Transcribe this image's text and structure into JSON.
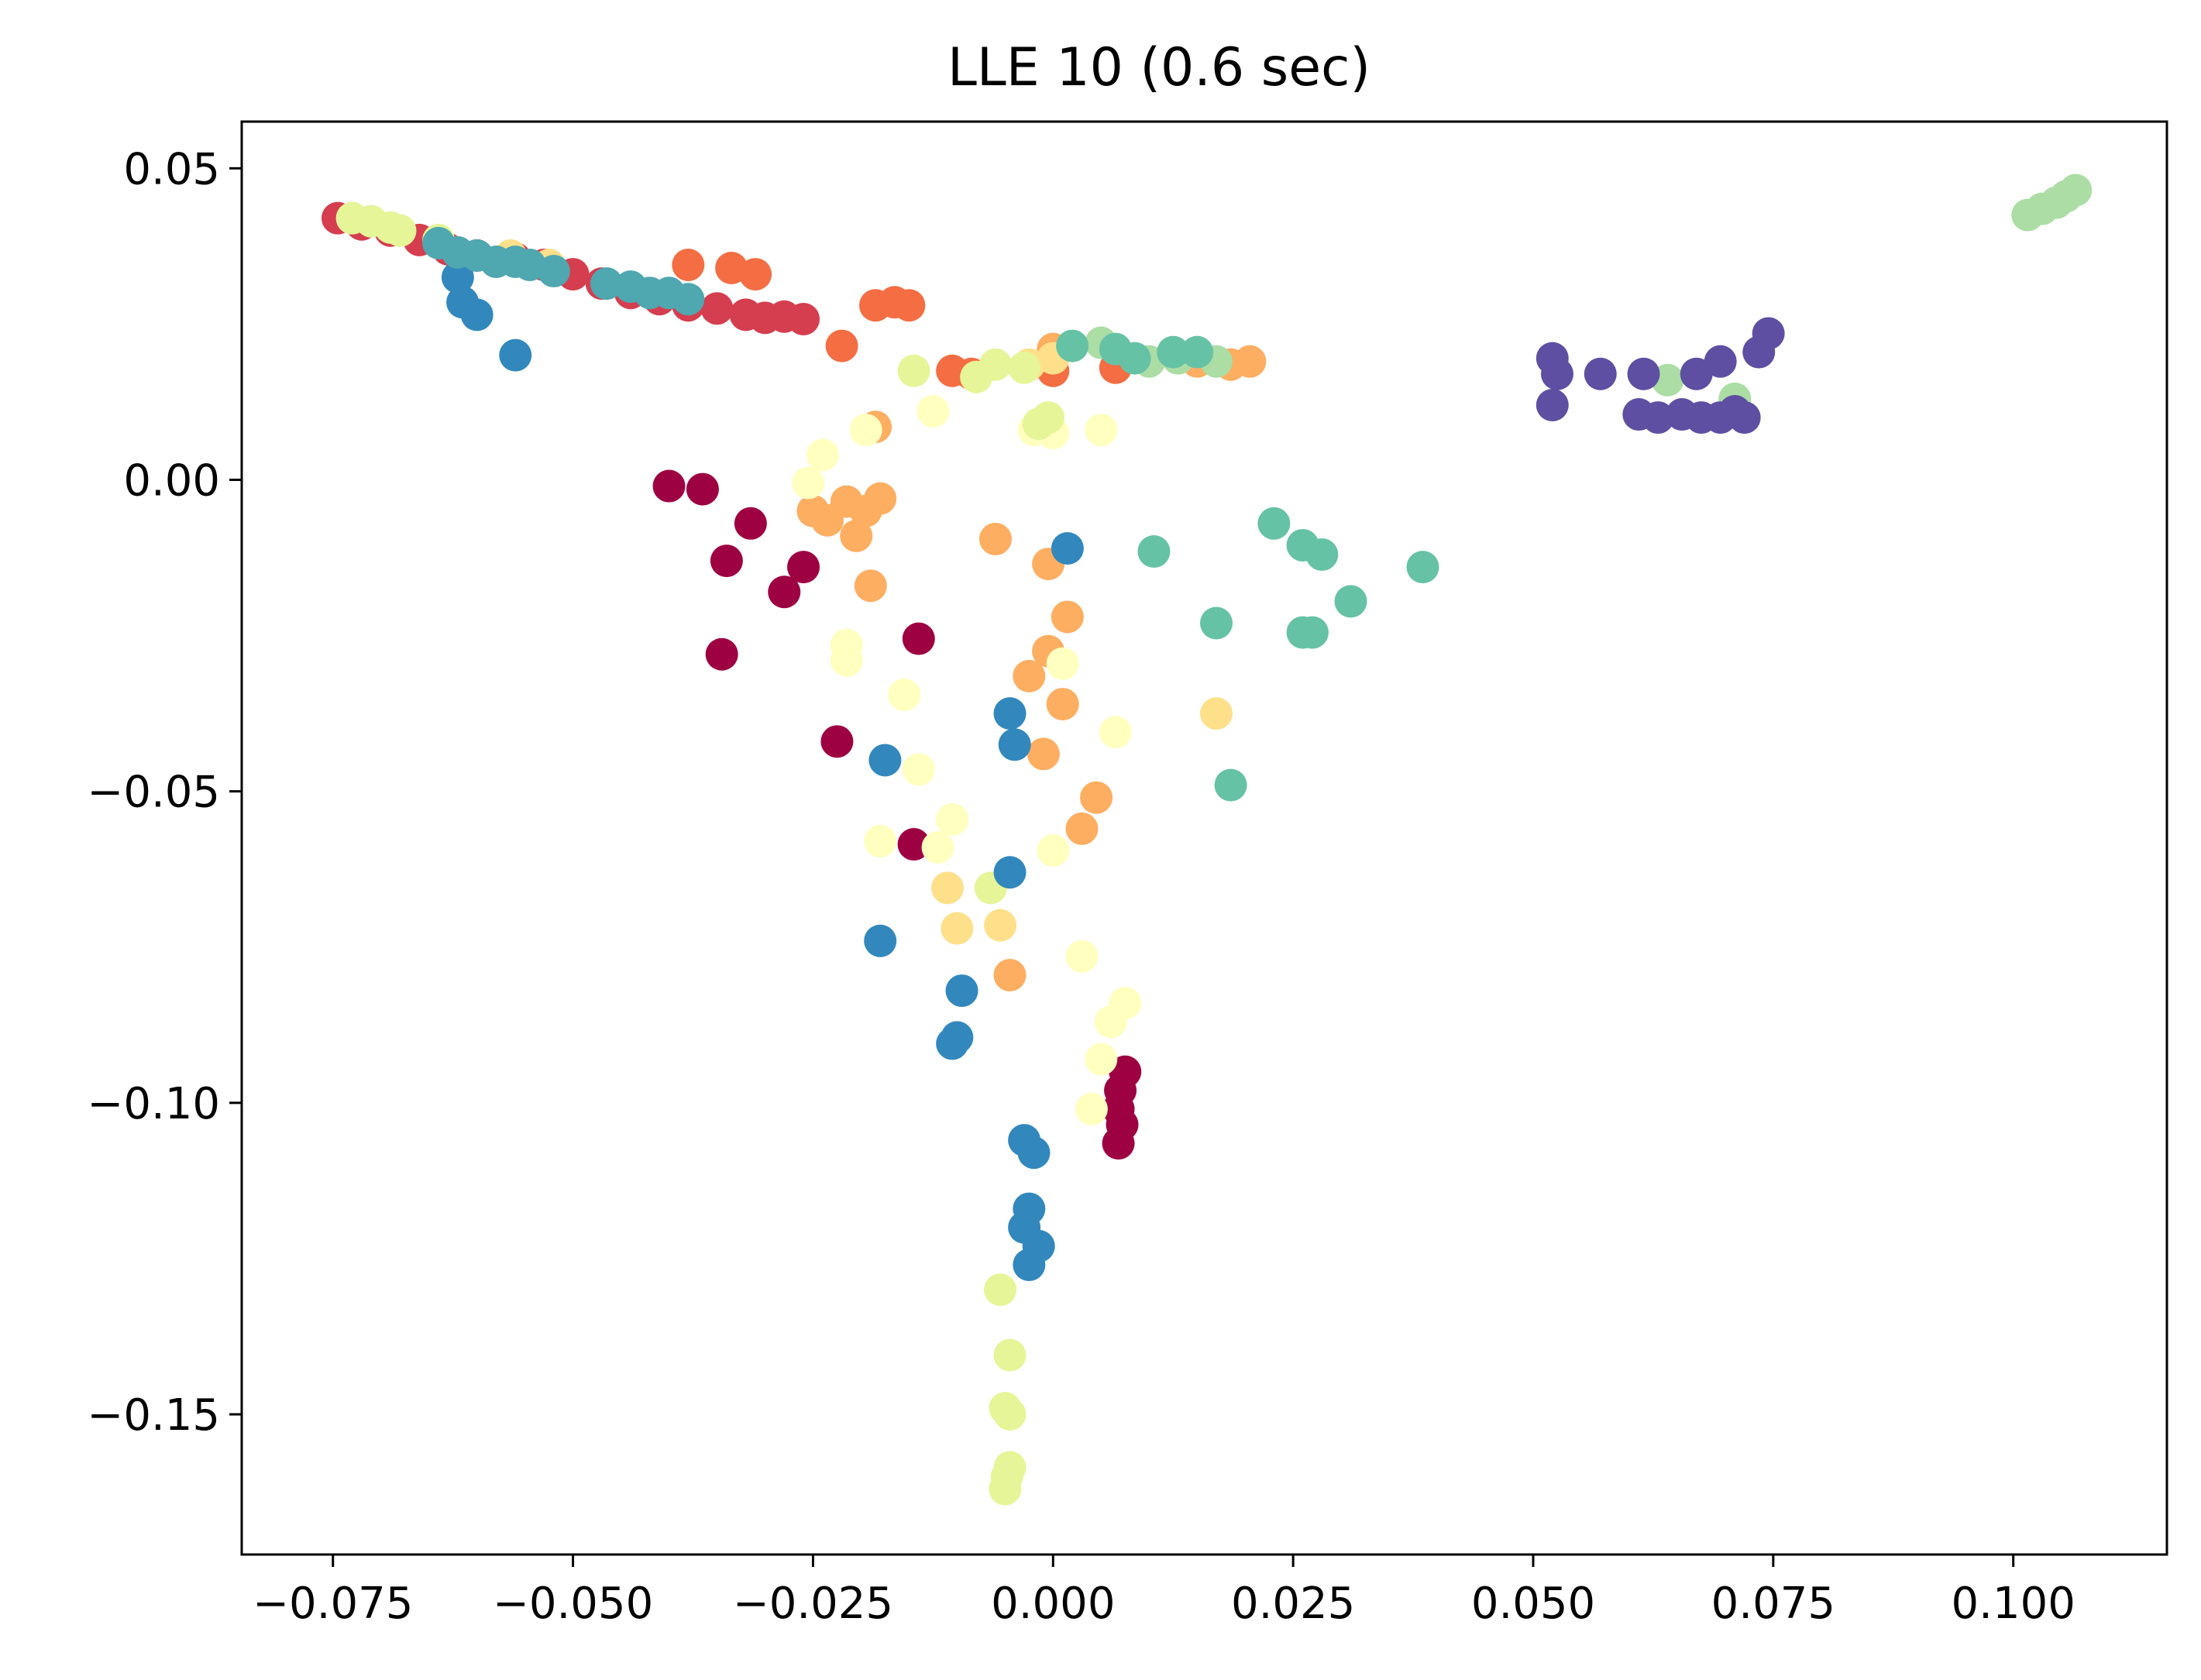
{
  "chart_data": {
    "type": "scatter",
    "title": "LLE 10 (0.6 sec)",
    "xlabel": "",
    "ylabel": "",
    "xlim": [
      -0.0845,
      0.116
    ],
    "ylim": [
      -0.1725,
      0.0575
    ],
    "xticks": [
      -0.075,
      -0.05,
      -0.025,
      0.0,
      0.025,
      0.05,
      0.075,
      0.1
    ],
    "xtick_labels": [
      "−0.075",
      "−0.050",
      "−0.025",
      "0.000",
      "0.025",
      "0.050",
      "0.075",
      "0.100"
    ],
    "yticks": [
      0.05,
      0.0,
      -0.05,
      -0.1,
      -0.15
    ],
    "ytick_labels": [
      "0.05",
      "0.00",
      "−0.05",
      "−0.10",
      "−0.15"
    ],
    "grid": false,
    "legend": "none",
    "marker_colors": {
      "c1": "#9e0142",
      "c2": "#d53e4f",
      "c3": "#f46d43",
      "c4": "#fdae61",
      "c5": "#fee08b",
      "c6": "#ffffbf",
      "c7": "#e6f598",
      "c8": "#abdda4",
      "c9": "#66c2a5",
      "c10": "#3288bd",
      "c11": "#5e4fa2",
      "c12": "#4fa7b0"
    },
    "series": [
      {
        "color": "c1",
        "points": [
          [
            -0.04,
            -0.001
          ],
          [
            -0.0365,
            -0.0015
          ],
          [
            -0.0315,
            -0.007
          ],
          [
            -0.034,
            -0.013
          ],
          [
            -0.026,
            -0.014
          ],
          [
            -0.028,
            -0.018
          ],
          [
            -0.0345,
            -0.028
          ],
          [
            -0.014,
            -0.0255
          ],
          [
            -0.0225,
            -0.042
          ],
          [
            -0.0145,
            -0.0585
          ],
          [
            0.0075,
            -0.095
          ],
          [
            0.007,
            -0.098
          ],
          [
            0.0068,
            -0.101
          ],
          [
            0.0072,
            -0.1035
          ],
          [
            0.0068,
            -0.1065
          ]
        ]
      },
      {
        "color": "c2",
        "points": [
          [
            -0.0745,
            0.042
          ],
          [
            -0.072,
            0.041
          ],
          [
            -0.069,
            0.04
          ],
          [
            -0.066,
            0.0385
          ],
          [
            -0.063,
            0.037
          ],
          [
            -0.06,
            0.036
          ],
          [
            -0.056,
            0.0355
          ],
          [
            -0.053,
            0.0345
          ],
          [
            -0.05,
            0.033
          ],
          [
            -0.047,
            0.0315
          ],
          [
            -0.044,
            0.03
          ],
          [
            -0.041,
            0.029
          ],
          [
            -0.038,
            0.028
          ],
          [
            -0.035,
            0.0275
          ],
          [
            -0.032,
            0.0265
          ],
          [
            -0.03,
            0.026
          ],
          [
            -0.028,
            0.0262
          ],
          [
            -0.026,
            0.0258
          ]
        ]
      },
      {
        "color": "c3",
        "points": [
          [
            -0.038,
            0.0345
          ],
          [
            -0.0335,
            0.034
          ],
          [
            -0.031,
            0.033
          ],
          [
            -0.022,
            0.0215
          ],
          [
            -0.0185,
            0.028
          ],
          [
            -0.0165,
            0.0285
          ],
          [
            -0.015,
            0.028
          ],
          [
            -0.0105,
            0.0175
          ],
          [
            -0.0085,
            0.017
          ],
          [
            0.0,
            0.0175
          ],
          [
            0.0065,
            0.018
          ]
        ]
      },
      {
        "color": "c4",
        "points": [
          [
            -0.0185,
            0.0085
          ],
          [
            -0.0215,
            -0.0035
          ],
          [
            -0.0195,
            -0.005
          ],
          [
            -0.0235,
            -0.0065
          ],
          [
            -0.0205,
            -0.009
          ],
          [
            -0.018,
            -0.003
          ],
          [
            -0.025,
            -0.005
          ],
          [
            -0.019,
            -0.017
          ],
          [
            0.0,
            0.021
          ],
          [
            0.015,
            0.019
          ],
          [
            0.0185,
            0.0185
          ],
          [
            0.0205,
            0.019
          ]
        ]
      },
      {
        "color": "c4",
        "points": [
          [
            -0.006,
            -0.0095
          ],
          [
            -0.0005,
            -0.0135
          ],
          [
            0.0015,
            -0.022
          ],
          [
            -0.0005,
            -0.0275
          ],
          [
            -0.0025,
            -0.0315
          ],
          [
            0.001,
            -0.036
          ],
          [
            -0.001,
            -0.044
          ],
          [
            0.0045,
            -0.051
          ],
          [
            0.003,
            -0.056
          ],
          [
            -0.0045,
            -0.0795
          ]
        ]
      },
      {
        "color": "c5",
        "points": [
          [
            -0.0565,
            0.036
          ],
          [
            -0.0525,
            0.0345
          ],
          [
            -0.0025,
            0.0185
          ],
          [
            0.0,
            0.0195
          ],
          [
            -0.0055,
            -0.0715
          ],
          [
            -0.01,
            -0.072
          ],
          [
            -0.011,
            -0.0655
          ],
          [
            0.017,
            -0.0375
          ]
        ]
      },
      {
        "color": "c6",
        "points": [
          [
            -0.0255,
            -0.0005
          ],
          [
            -0.024,
            0.004
          ],
          [
            -0.0195,
            0.008
          ],
          [
            -0.0125,
            0.011
          ],
          [
            -0.0215,
            -0.0265
          ],
          [
            -0.0215,
            -0.029
          ],
          [
            -0.0155,
            -0.0345
          ],
          [
            -0.014,
            -0.0465
          ],
          [
            -0.0105,
            -0.0545
          ],
          [
            -0.018,
            -0.058
          ],
          [
            -0.012,
            -0.059
          ],
          [
            0.001,
            -0.0295
          ],
          [
            0.0065,
            -0.0405
          ],
          [
            0.0,
            -0.0595
          ],
          [
            0.003,
            -0.0765
          ],
          [
            0.0075,
            -0.084
          ],
          [
            0.006,
            -0.087
          ],
          [
            0.005,
            -0.093
          ],
          [
            0.004,
            -0.101
          ],
          [
            -0.002,
            0.008
          ],
          [
            0.0,
            0.0075
          ],
          [
            0.005,
            0.008
          ]
        ]
      },
      {
        "color": "c7",
        "points": [
          [
            -0.073,
            0.042
          ],
          [
            -0.071,
            0.0415
          ],
          [
            -0.069,
            0.0405
          ],
          [
            -0.068,
            0.04
          ],
          [
            -0.064,
            0.0385
          ],
          [
            -0.0145,
            0.0175
          ],
          [
            -0.008,
            0.0165
          ],
          [
            -0.006,
            0.0185
          ],
          [
            -0.003,
            0.018
          ],
          [
            -0.0015,
            0.009
          ],
          [
            -0.0005,
            0.01
          ],
          [
            -0.0065,
            -0.0655
          ],
          [
            -0.0055,
            -0.13
          ],
          [
            -0.0045,
            -0.1405
          ],
          [
            -0.005,
            -0.149
          ],
          [
            -0.0045,
            -0.15
          ],
          [
            -0.0045,
            -0.1585
          ],
          [
            -0.0048,
            -0.16
          ],
          [
            -0.005,
            -0.162
          ]
        ]
      },
      {
        "color": "c8",
        "points": [
          [
            0.1015,
            0.0425
          ],
          [
            0.103,
            0.0435
          ],
          [
            0.1045,
            0.0445
          ],
          [
            0.1055,
            0.0455
          ],
          [
            0.1065,
            0.0465
          ],
          [
            0.005,
            0.022
          ],
          [
            0.01,
            0.019
          ],
          [
            0.013,
            0.0195
          ],
          [
            0.017,
            0.019
          ],
          [
            0.064,
            0.016
          ],
          [
            0.071,
            0.013
          ]
        ]
      },
      {
        "color": "c9",
        "points": [
          [
            0.002,
            0.0215
          ],
          [
            0.0065,
            0.021
          ],
          [
            0.0085,
            0.0195
          ],
          [
            0.0125,
            0.0205
          ],
          [
            0.015,
            0.0205
          ],
          [
            0.0105,
            -0.0115
          ],
          [
            0.023,
            -0.007
          ],
          [
            0.026,
            -0.0105
          ],
          [
            0.028,
            -0.012
          ],
          [
            0.0385,
            -0.014
          ],
          [
            0.031,
            -0.0195
          ],
          [
            0.017,
            -0.023
          ],
          [
            0.026,
            -0.0245
          ],
          [
            0.027,
            -0.0245
          ],
          [
            0.0185,
            -0.049
          ]
        ]
      },
      {
        "color": "c10",
        "points": [
          [
            0.0015,
            -0.011
          ],
          [
            -0.0045,
            -0.0375
          ],
          [
            -0.004,
            -0.0425
          ],
          [
            -0.0045,
            -0.063
          ],
          [
            -0.003,
            -0.106
          ],
          [
            -0.002,
            -0.108
          ],
          [
            -0.0025,
            -0.117
          ],
          [
            -0.003,
            -0.12
          ],
          [
            -0.0015,
            -0.123
          ],
          [
            -0.0025,
            -0.126
          ]
        ]
      },
      {
        "color": "c10",
        "points": [
          [
            -0.062,
            0.0325
          ],
          [
            -0.0615,
            0.0285
          ],
          [
            -0.06,
            0.0265
          ],
          [
            -0.056,
            0.02
          ],
          [
            -0.0175,
            -0.045
          ],
          [
            -0.018,
            -0.074
          ],
          [
            -0.0095,
            -0.082
          ],
          [
            -0.01,
            -0.0895
          ],
          [
            -0.0105,
            -0.0905
          ]
        ]
      },
      {
        "color": "c11",
        "points": [
          [
            0.052,
            0.0195
          ],
          [
            0.0525,
            0.017
          ],
          [
            0.057,
            0.017
          ],
          [
            0.0615,
            0.017
          ],
          [
            0.067,
            0.017
          ],
          [
            0.0695,
            0.019
          ],
          [
            0.0735,
            0.0205
          ],
          [
            0.0745,
            0.0235
          ],
          [
            0.052,
            0.012
          ],
          [
            0.061,
            0.0105
          ],
          [
            0.063,
            0.01
          ],
          [
            0.0655,
            0.0105
          ],
          [
            0.0675,
            0.01
          ],
          [
            0.0695,
            0.01
          ],
          [
            0.071,
            0.011
          ],
          [
            0.072,
            0.01
          ]
        ]
      },
      {
        "color": "c12",
        "points": [
          [
            -0.064,
            0.038
          ],
          [
            -0.062,
            0.0365
          ],
          [
            -0.06,
            0.036
          ],
          [
            -0.058,
            0.035
          ],
          [
            -0.056,
            0.035
          ],
          [
            -0.0545,
            0.0345
          ],
          [
            -0.052,
            0.0335
          ],
          [
            -0.0465,
            0.0315
          ],
          [
            -0.044,
            0.031
          ],
          [
            -0.042,
            0.03
          ],
          [
            -0.04,
            0.03
          ],
          [
            -0.038,
            0.029
          ]
        ]
      }
    ]
  }
}
